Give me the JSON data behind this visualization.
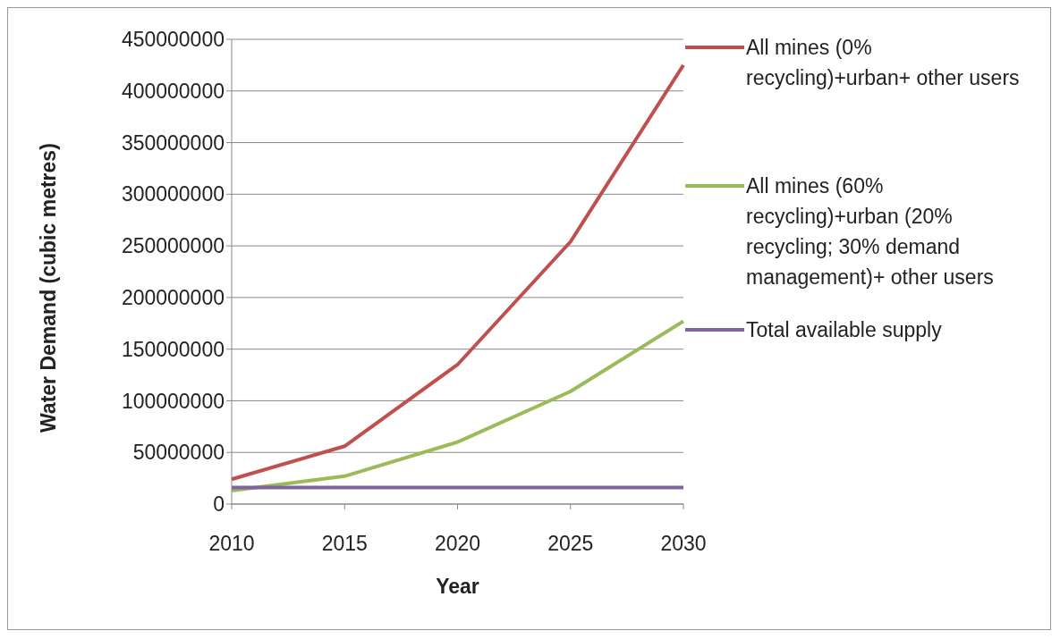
{
  "chart_data": {
    "type": "line",
    "xlabel": "Year",
    "ylabel": "Water Demand (cubic metres)",
    "categories": [
      "2010",
      "2015",
      "2020",
      "2025",
      "2030"
    ],
    "series": [
      {
        "name": "All mines (0% recycling)+urban+ other users",
        "color": "#c0504d",
        "values": [
          24000000,
          56000000,
          135000000,
          254000000,
          425000000
        ]
      },
      {
        "name": "All mines (60% recycling)+urban (20% recycling; 30% demand management)+ other users",
        "color": "#9bbb59",
        "values": [
          13000000,
          27000000,
          60000000,
          109000000,
          177000000
        ]
      },
      {
        "name": "Total available supply",
        "color": "#8064a2",
        "values": [
          16000000,
          16000000,
          16000000,
          16000000,
          16000000
        ]
      }
    ],
    "ylim": [
      0,
      450000000
    ],
    "yticks": [
      0,
      50000000,
      100000000,
      150000000,
      200000000,
      250000000,
      300000000,
      350000000,
      400000000,
      450000000
    ],
    "grid": "y",
    "legend": "right"
  }
}
